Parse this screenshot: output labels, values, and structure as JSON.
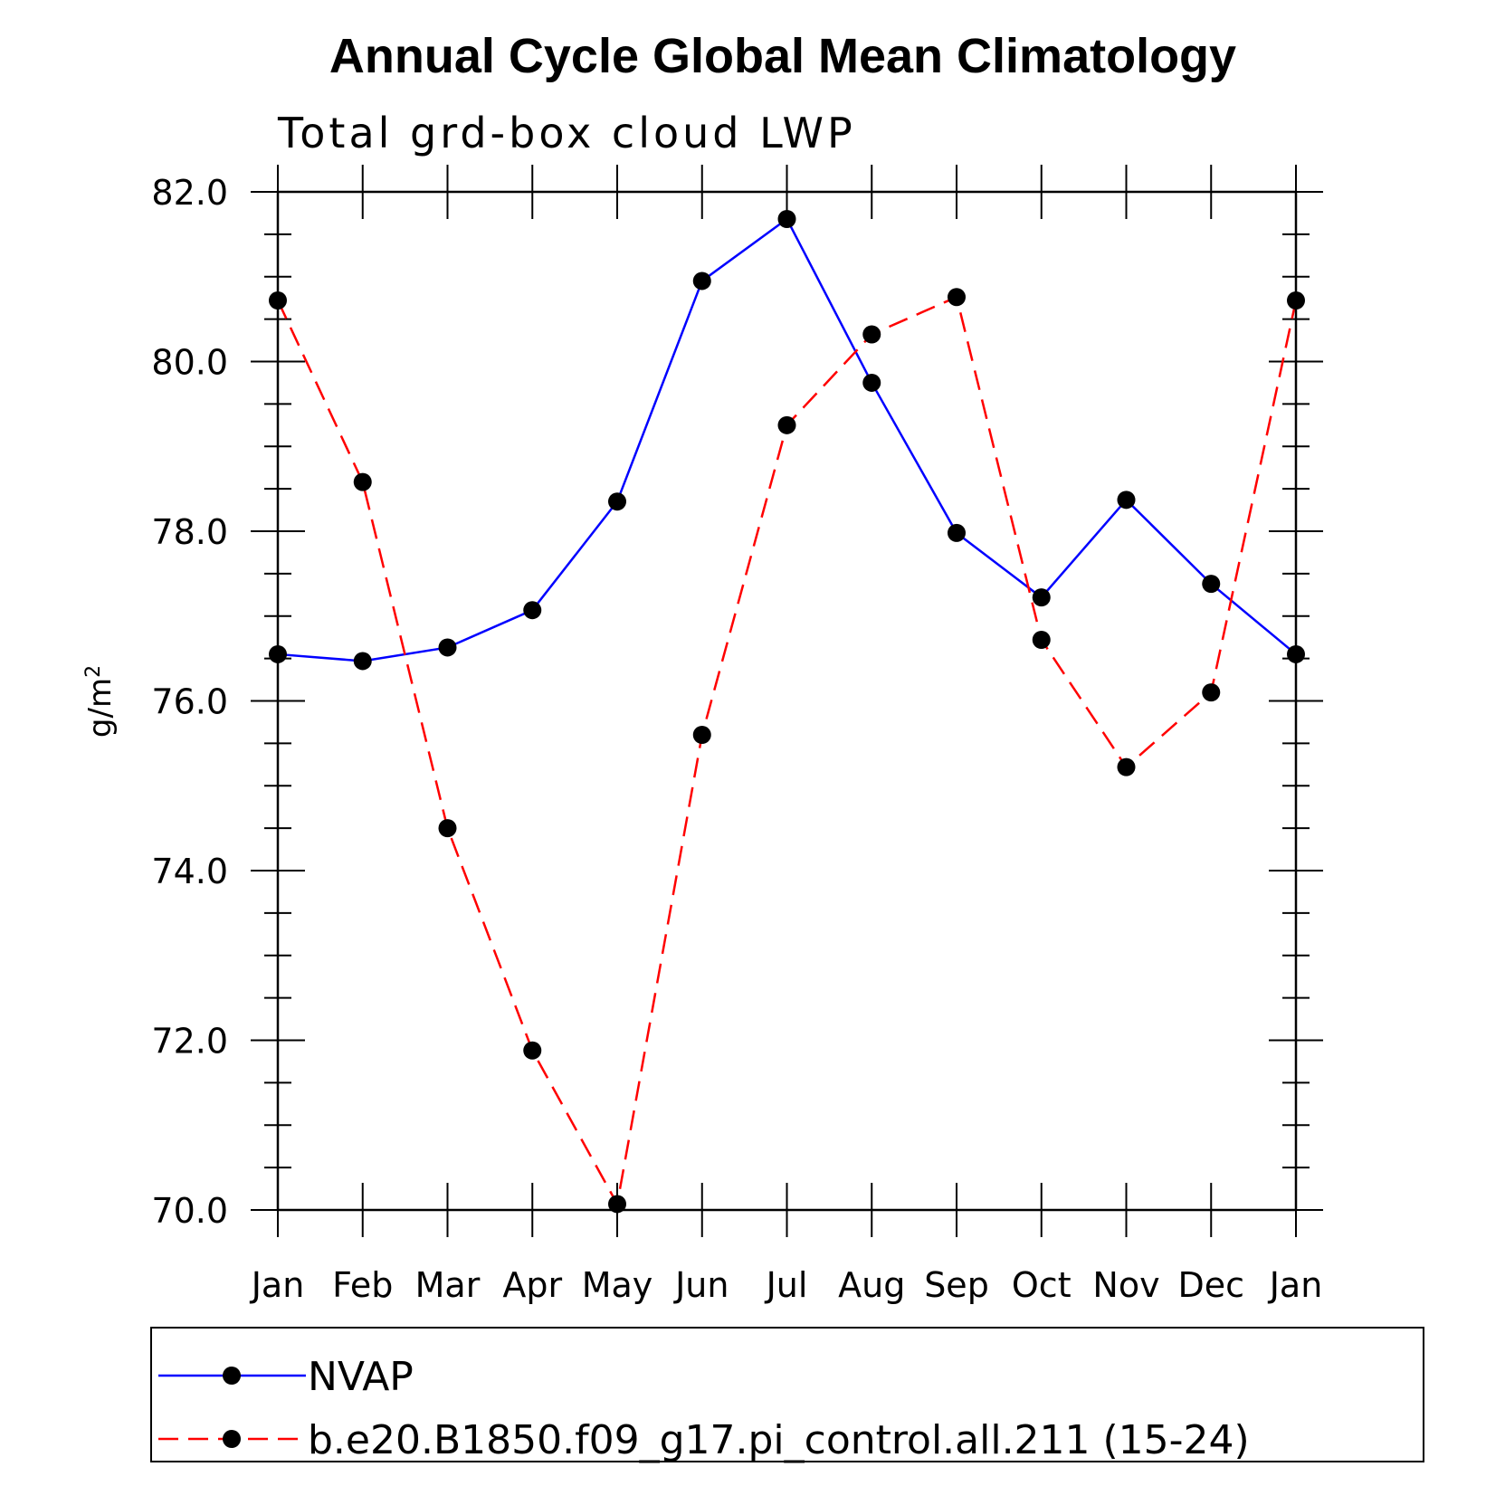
{
  "chart_data": {
    "type": "line",
    "title": "Annual Cycle Global Mean Climatology",
    "subtitle": "Total grd-box cloud LWP",
    "ylabel": "g/m",
    "ylabel_superscript": "2",
    "xlabel": "",
    "categories": [
      "Jan",
      "Feb",
      "Mar",
      "Apr",
      "May",
      "Jun",
      "Jul",
      "Aug",
      "Sep",
      "Oct",
      "Nov",
      "Dec",
      "Jan"
    ],
    "ylim": [
      70.0,
      82.0
    ],
    "yticks": [
      "70.0",
      "72.0",
      "74.0",
      "76.0",
      "78.0",
      "80.0",
      "82.0"
    ],
    "grid": false,
    "legend_position": "bottom",
    "series": [
      {
        "name": "NVAP",
        "color": "#0000ff",
        "dash": "solid",
        "marker": "filled-circle",
        "values": [
          76.55,
          76.47,
          76.63,
          77.07,
          78.35,
          80.95,
          81.68,
          79.75,
          77.98,
          77.22,
          78.37,
          77.38,
          76.55
        ]
      },
      {
        "name": "b.e20.B1850.f09_g17.pi_control.all.211 (15-24)",
        "color": "#ff0000",
        "dash": "dashed",
        "marker": "filled-circle",
        "values": [
          80.72,
          78.58,
          74.5,
          71.88,
          70.07,
          75.6,
          79.25,
          80.32,
          80.76,
          76.72,
          75.22,
          76.1,
          80.72
        ]
      }
    ]
  }
}
